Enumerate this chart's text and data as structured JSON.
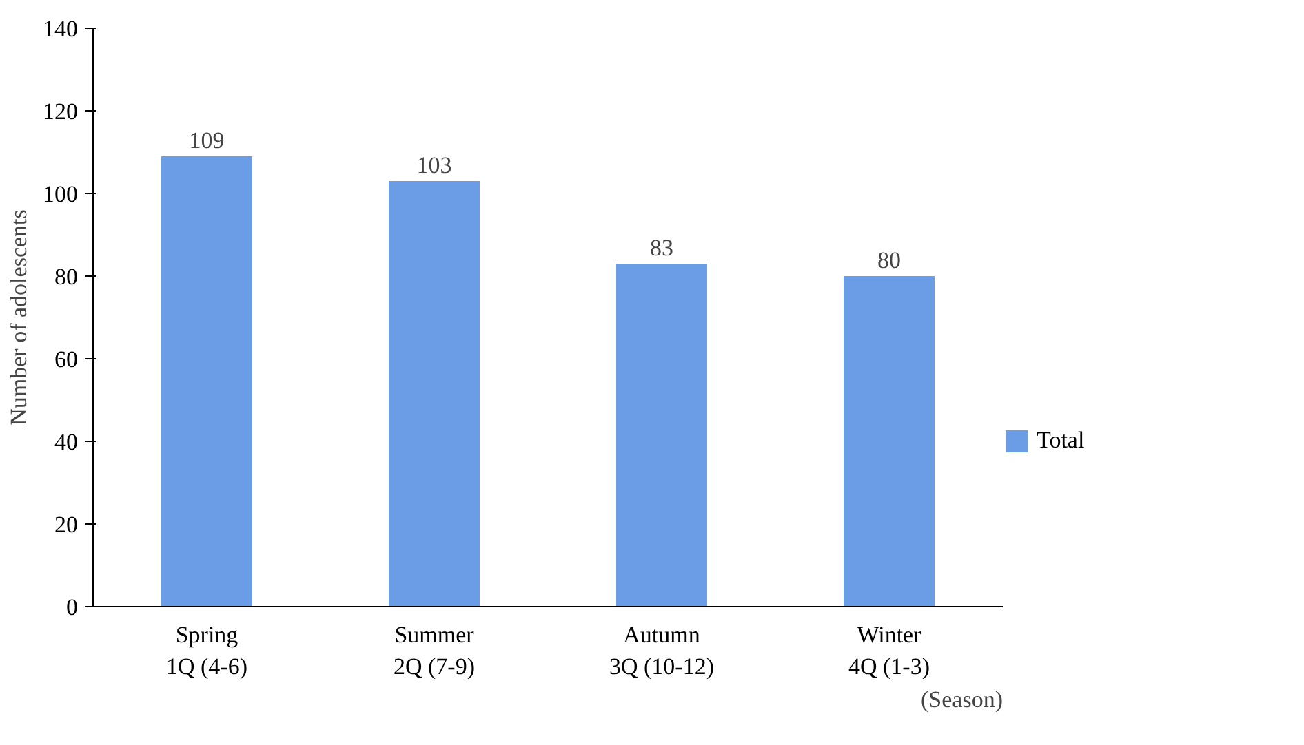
{
  "chart_data": {
    "type": "bar",
    "ylabel": "Number of adolescents",
    "xlabel": "(Season)",
    "categories": [
      "Spring\n1Q (4-6)",
      "Summer\n2Q (7-9)",
      "Autumn\n3Q (10-12)",
      "Winter\n4Q (1-3)"
    ],
    "series": [
      {
        "name": "Total",
        "color": "#6a9de6",
        "values": [
          109,
          103,
          83,
          80
        ]
      }
    ],
    "ylim": [
      0,
      140
    ],
    "yticks": [
      0,
      20,
      40,
      60,
      80,
      100,
      120,
      140
    ],
    "data_labels": true,
    "legend": "right",
    "grid": false
  }
}
